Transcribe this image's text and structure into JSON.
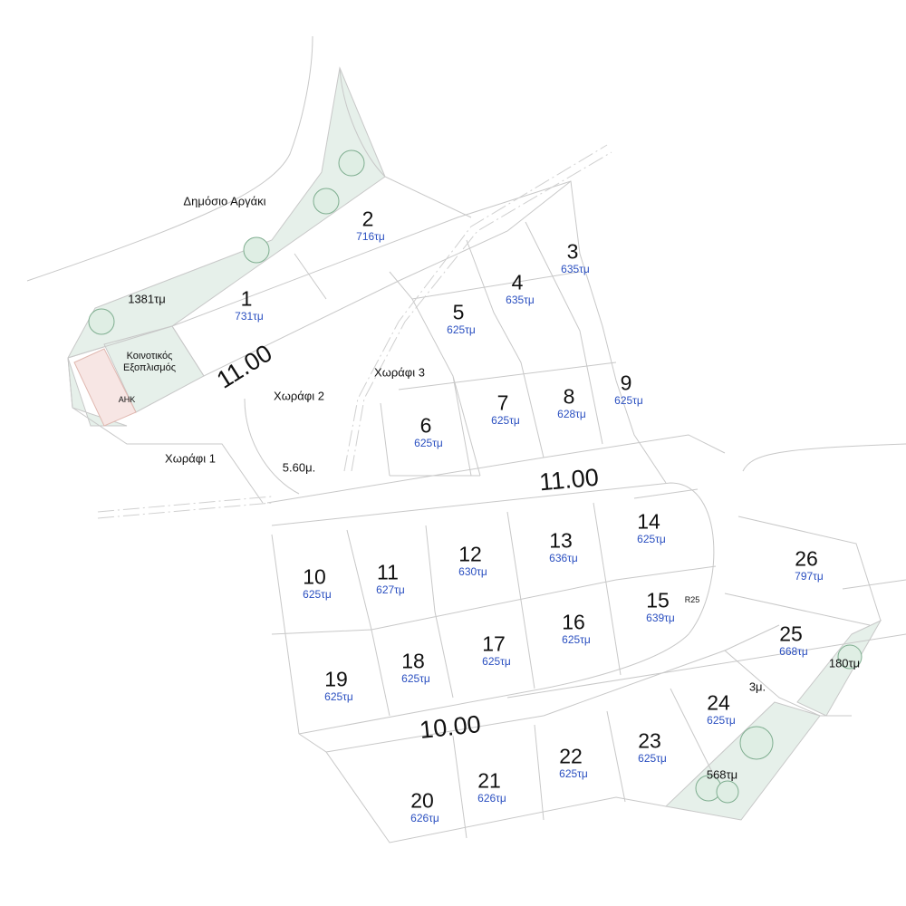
{
  "plots": [
    {
      "number": "1",
      "area": "731τμ"
    },
    {
      "number": "2",
      "area": "716τμ"
    },
    {
      "number": "3",
      "area": "635τμ"
    },
    {
      "number": "4",
      "area": "635τμ"
    },
    {
      "number": "5",
      "area": "625τμ"
    },
    {
      "number": "6",
      "area": "625τμ"
    },
    {
      "number": "7",
      "area": "625τμ"
    },
    {
      "number": "8",
      "area": "628τμ"
    },
    {
      "number": "9",
      "area": "625τμ"
    },
    {
      "number": "10",
      "area": "625τμ"
    },
    {
      "number": "11",
      "area": "627τμ"
    },
    {
      "number": "12",
      "area": "630τμ"
    },
    {
      "number": "13",
      "area": "636τμ"
    },
    {
      "number": "14",
      "area": "625τμ"
    },
    {
      "number": "15",
      "area": "639τμ"
    },
    {
      "number": "16",
      "area": "625τμ"
    },
    {
      "number": "17",
      "area": "625τμ"
    },
    {
      "number": "18",
      "area": "625τμ"
    },
    {
      "number": "19",
      "area": "625τμ"
    },
    {
      "number": "20",
      "area": "626τμ"
    },
    {
      "number": "21",
      "area": "626τμ"
    },
    {
      "number": "22",
      "area": "625τμ"
    },
    {
      "number": "23",
      "area": "625τμ"
    },
    {
      "number": "24",
      "area": "625τμ"
    },
    {
      "number": "25",
      "area": "668τμ"
    },
    {
      "number": "26",
      "area": "797τμ"
    }
  ],
  "labels": {
    "stream": "Δημόσιο Αργάκι",
    "green_area_1": "1381τμ",
    "community_1": "Κοινοτικός",
    "community_2": "Εξοπλισμός",
    "substation": "ΑΗΚ",
    "field_1": "Χωράφι 1",
    "field_2": "Χωράφι 2",
    "field_3": "Χωράφι 3",
    "path_width": "5.60μ.",
    "road_width_upper": "11.00",
    "road_width_main": "11.00",
    "road_width_lower": "10.00",
    "radius": "R25",
    "footpath_width": "3μ.",
    "green_area_2": "180τμ",
    "green_area_3": "568τμ"
  },
  "colors": {
    "area_text": "#2a4fc0",
    "green_space": "#e6f0ea",
    "lines": "#c8c8c8"
  }
}
